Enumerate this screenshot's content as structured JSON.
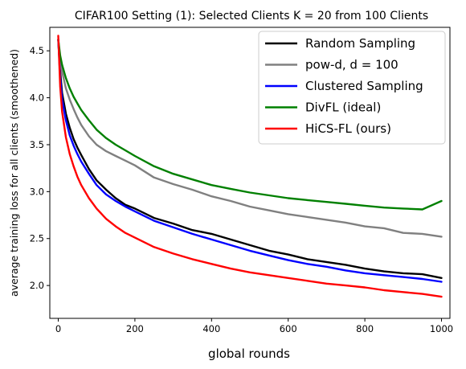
{
  "chart_data": {
    "type": "line",
    "title": "CIFAR100 Setting (1): Selected Clients K = 20 from 100 Clients",
    "xlabel": "global rounds",
    "ylabel": "average training loss for all clients (smoothened)",
    "xlim": [
      -22,
      1022
    ],
    "ylim": [
      1.65,
      4.75
    ],
    "xticks": [
      0,
      200,
      400,
      600,
      800,
      1000
    ],
    "yticks": [
      2.0,
      2.5,
      3.0,
      3.5,
      4.0,
      4.5
    ],
    "xtick_labels": [
      "0",
      "200",
      "400",
      "600",
      "800",
      "1000"
    ],
    "ytick_labels": [
      "2.0",
      "2.5",
      "3.0",
      "3.5",
      "4.0",
      "4.5"
    ],
    "grid": false,
    "legend": "top-right",
    "series": [
      {
        "name": "Random Sampling",
        "color": "#000000",
        "x": [
          0,
          5,
          10,
          20,
          30,
          40,
          50,
          60,
          80,
          100,
          125,
          150,
          175,
          200,
          250,
          300,
          350,
          400,
          450,
          500,
          550,
          600,
          650,
          700,
          750,
          800,
          850,
          900,
          950,
          1000
        ],
        "y": [
          4.62,
          4.28,
          4.05,
          3.83,
          3.68,
          3.56,
          3.47,
          3.39,
          3.24,
          3.12,
          3.02,
          2.93,
          2.86,
          2.82,
          2.72,
          2.66,
          2.59,
          2.55,
          2.49,
          2.43,
          2.37,
          2.33,
          2.28,
          2.25,
          2.22,
          2.18,
          2.15,
          2.13,
          2.12,
          2.08
        ]
      },
      {
        "name": "pow-d, d = 100",
        "color": "#808080",
        "x": [
          0,
          5,
          10,
          20,
          30,
          40,
          50,
          60,
          80,
          100,
          125,
          150,
          175,
          200,
          250,
          300,
          350,
          400,
          450,
          500,
          550,
          600,
          650,
          700,
          750,
          800,
          850,
          900,
          950,
          1000
        ],
        "y": [
          4.62,
          4.4,
          4.28,
          4.1,
          3.98,
          3.88,
          3.79,
          3.71,
          3.59,
          3.5,
          3.43,
          3.38,
          3.33,
          3.28,
          3.15,
          3.08,
          3.02,
          2.95,
          2.9,
          2.84,
          2.8,
          2.76,
          2.73,
          2.7,
          2.67,
          2.63,
          2.61,
          2.56,
          2.55,
          2.52
        ]
      },
      {
        "name": "Clustered Sampling",
        "color": "#0000ff",
        "x": [
          0,
          5,
          10,
          20,
          30,
          40,
          50,
          60,
          80,
          100,
          125,
          150,
          175,
          200,
          250,
          300,
          350,
          400,
          450,
          500,
          550,
          600,
          650,
          700,
          750,
          800,
          850,
          900,
          950,
          1000
        ],
        "y": [
          4.62,
          4.22,
          3.98,
          3.76,
          3.6,
          3.49,
          3.4,
          3.32,
          3.19,
          3.07,
          2.97,
          2.9,
          2.84,
          2.79,
          2.69,
          2.62,
          2.55,
          2.49,
          2.43,
          2.37,
          2.32,
          2.27,
          2.23,
          2.2,
          2.16,
          2.13,
          2.11,
          2.09,
          2.07,
          2.04
        ]
      },
      {
        "name": "DivFL (ideal)",
        "color": "#008000",
        "x": [
          0,
          5,
          10,
          20,
          30,
          40,
          50,
          60,
          80,
          100,
          125,
          150,
          175,
          200,
          250,
          300,
          350,
          400,
          450,
          500,
          550,
          600,
          650,
          700,
          750,
          800,
          850,
          900,
          950,
          1000
        ],
        "y": [
          4.62,
          4.45,
          4.35,
          4.21,
          4.1,
          4.01,
          3.94,
          3.87,
          3.76,
          3.66,
          3.57,
          3.5,
          3.44,
          3.38,
          3.27,
          3.19,
          3.13,
          3.07,
          3.03,
          2.99,
          2.96,
          2.93,
          2.91,
          2.89,
          2.87,
          2.85,
          2.83,
          2.82,
          2.81,
          2.9
        ]
      },
      {
        "name": "HiCS-FL (ours)",
        "color": "#ff0000",
        "x": [
          0,
          5,
          10,
          20,
          30,
          40,
          50,
          60,
          80,
          100,
          125,
          150,
          175,
          200,
          250,
          300,
          350,
          400,
          450,
          500,
          550,
          600,
          650,
          700,
          750,
          800,
          850,
          900,
          950,
          1000
        ],
        "y": [
          4.66,
          4.12,
          3.85,
          3.58,
          3.4,
          3.27,
          3.16,
          3.07,
          2.93,
          2.82,
          2.71,
          2.63,
          2.56,
          2.51,
          2.41,
          2.34,
          2.28,
          2.23,
          2.18,
          2.14,
          2.11,
          2.08,
          2.05,
          2.02,
          2.0,
          1.98,
          1.95,
          1.93,
          1.91,
          1.88
        ]
      }
    ]
  }
}
